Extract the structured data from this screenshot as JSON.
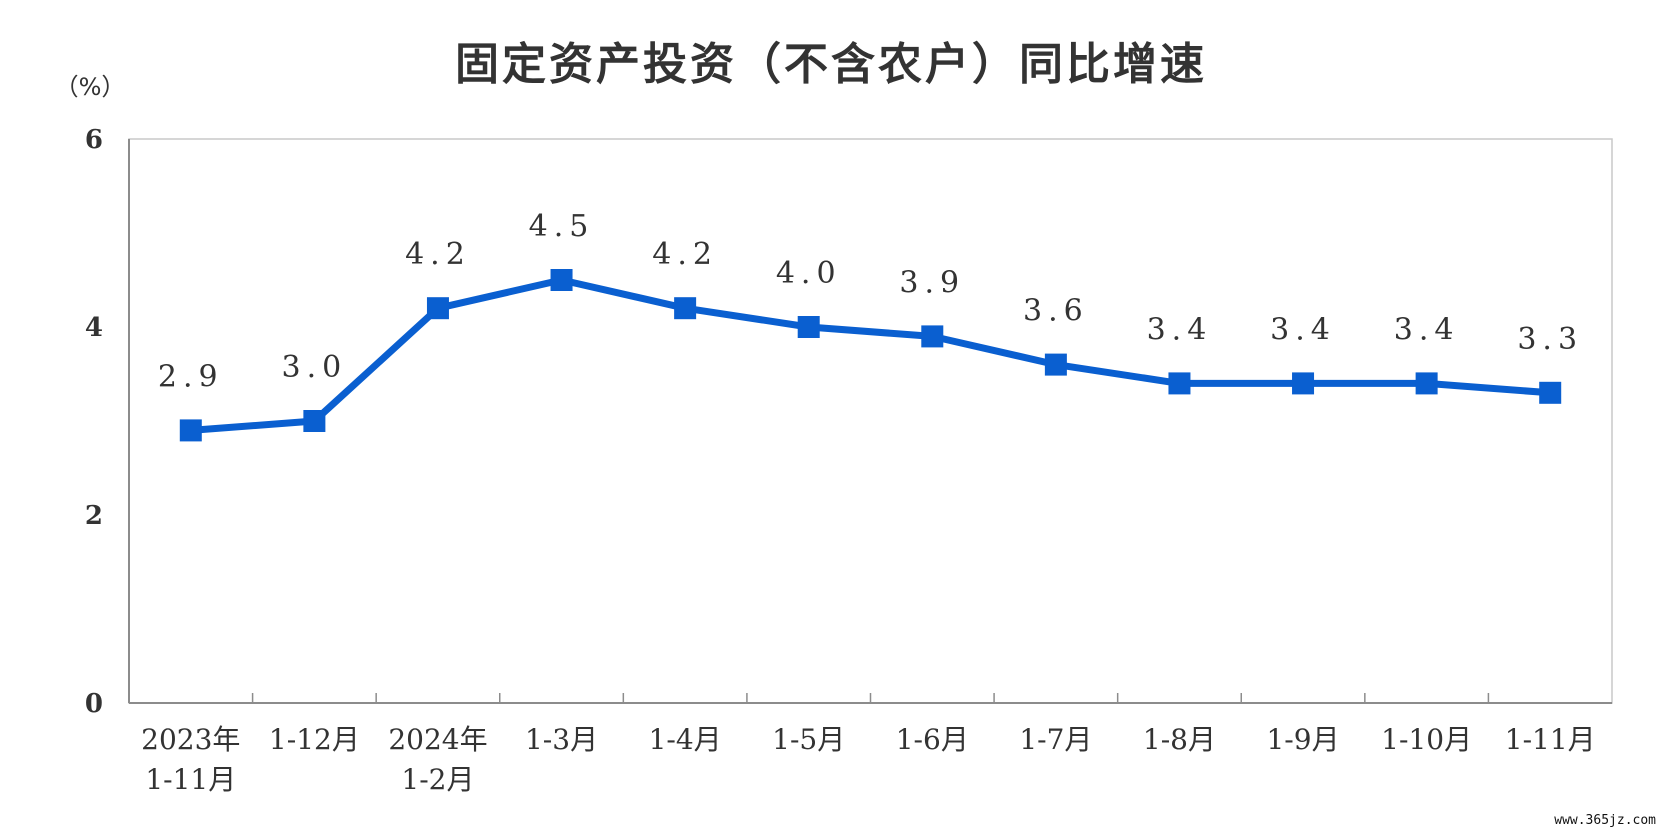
{
  "chart_data": {
    "type": "line",
    "title": "固定资产投资（不含农户）同比增速",
    "unit_label": "（%）",
    "categories": [
      [
        "2023年",
        "1-11月"
      ],
      [
        "1-12月"
      ],
      [
        "2024年",
        "1-2月"
      ],
      [
        "1-3月"
      ],
      [
        "1-4月"
      ],
      [
        "1-5月"
      ],
      [
        "1-6月"
      ],
      [
        "1-7月"
      ],
      [
        "1-8月"
      ],
      [
        "1-9月"
      ],
      [
        "1-10月"
      ],
      [
        "1-11月"
      ]
    ],
    "series": [
      {
        "values": [
          2.9,
          3.0,
          4.2,
          4.5,
          4.2,
          4.0,
          3.9,
          3.6,
          3.4,
          3.4,
          3.4,
          3.3
        ]
      }
    ],
    "data_labels": [
      "2.9",
      "3.0",
      "4.2",
      "4.5",
      "4.2",
      "4.0",
      "3.9",
      "3.6",
      "3.4",
      "3.4",
      "3.4",
      "3.3"
    ],
    "ylim": [
      0,
      6
    ],
    "yticks": [
      0,
      2,
      4,
      6
    ],
    "grid": false,
    "line_color": "#0a5fd0"
  },
  "watermark": "www.365jz.com"
}
